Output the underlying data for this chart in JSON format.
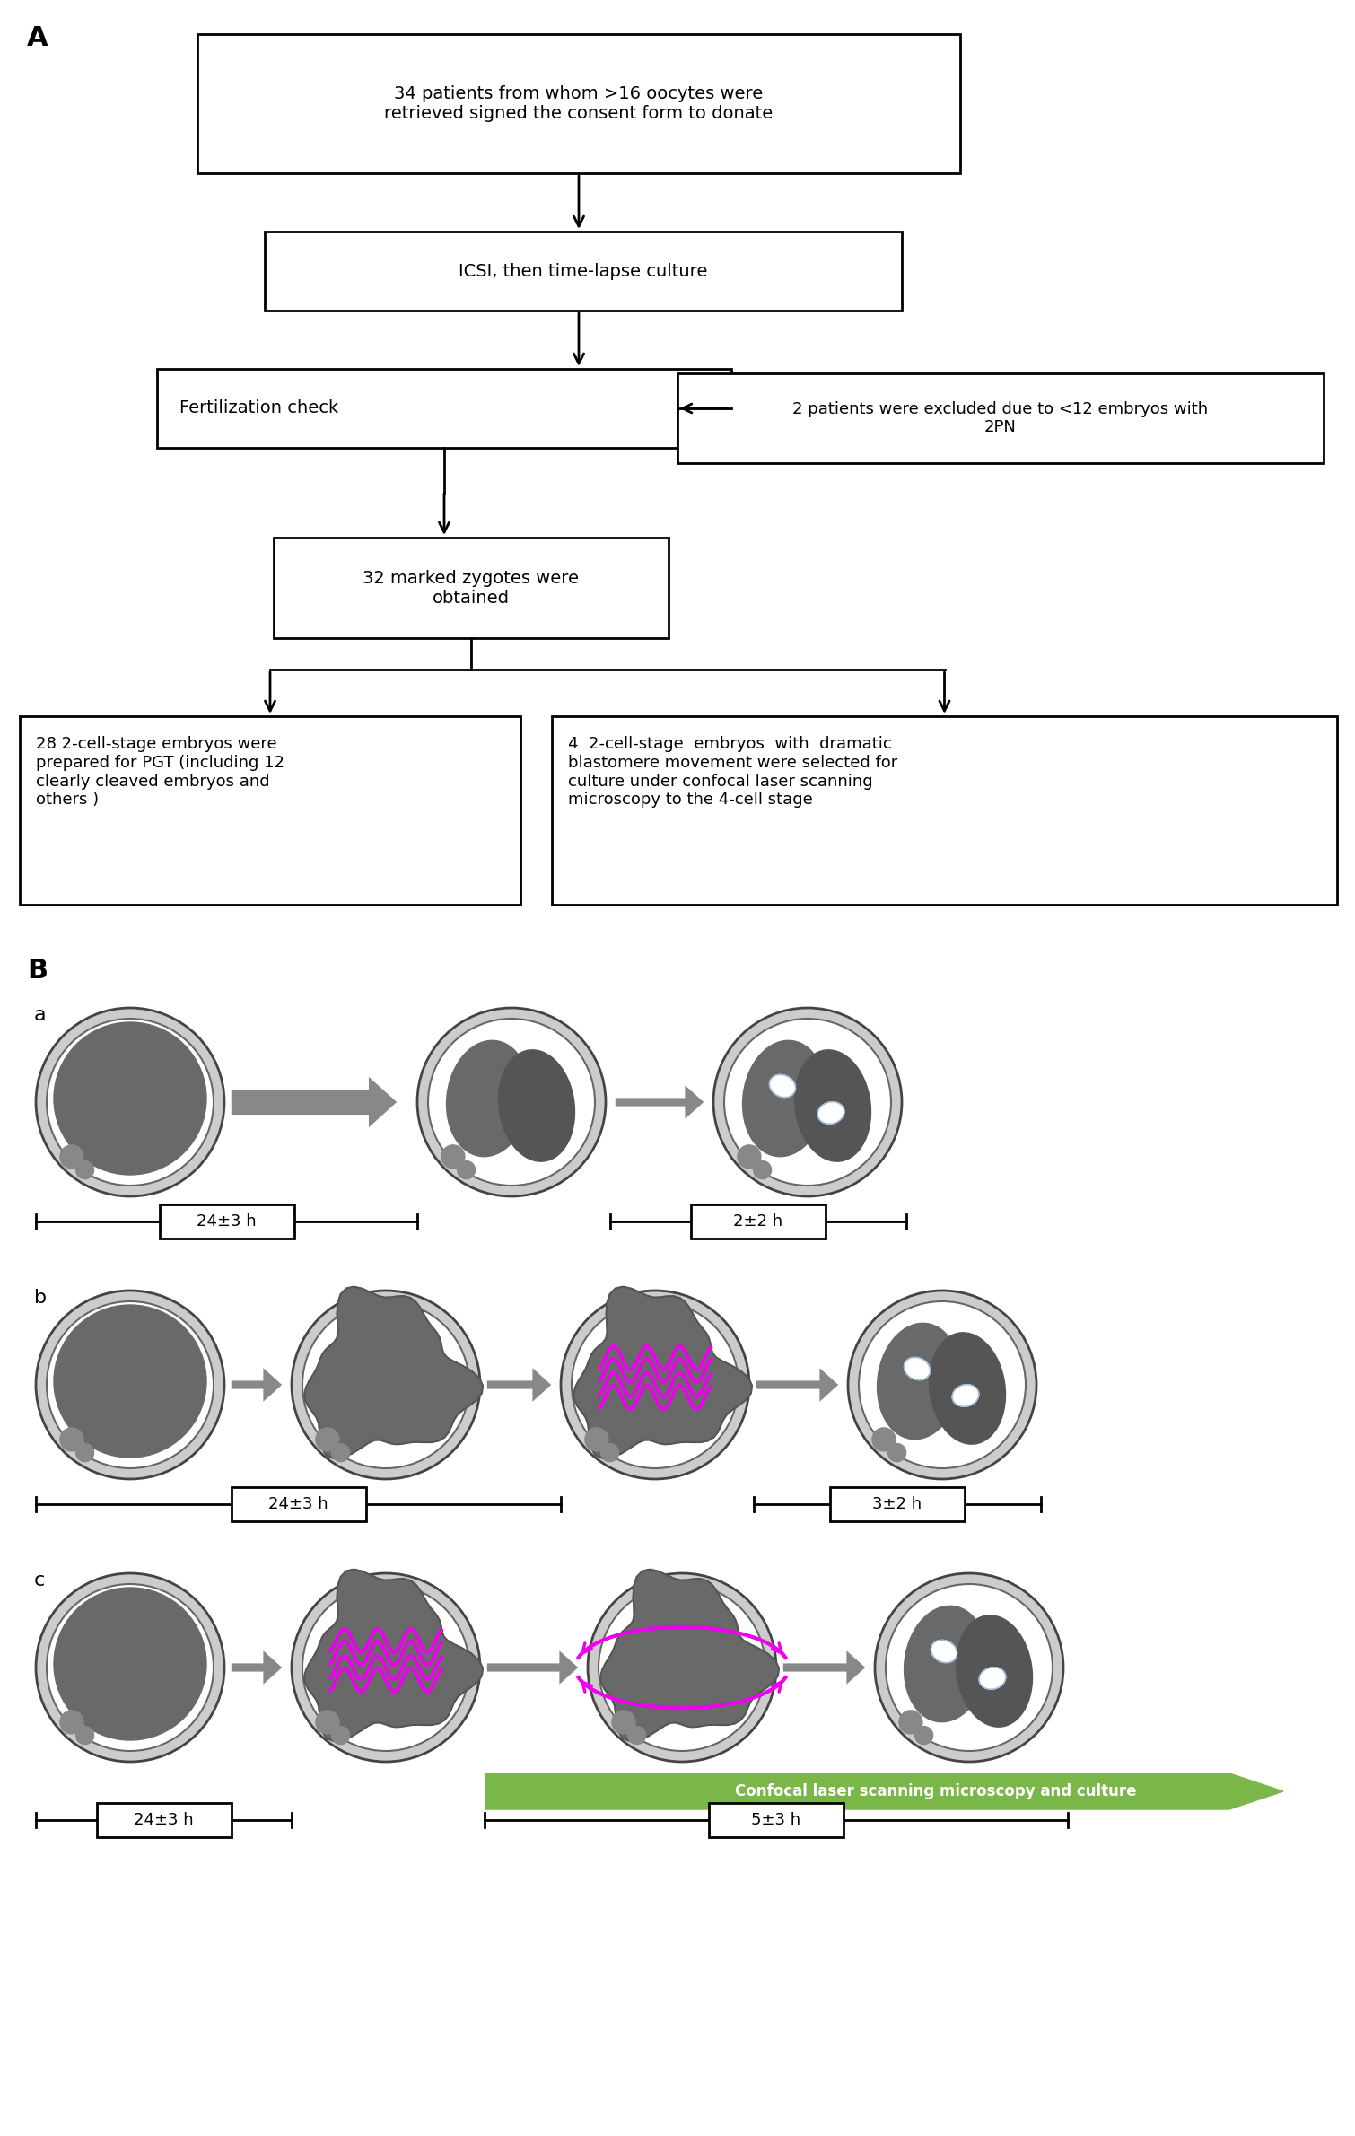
{
  "panel_A_label": "A",
  "panel_B_label": "B",
  "box1_text": "34 patients from whom >16 oocytes were\nretrieved signed the consent form to donate",
  "box2_text": "ICSI, then time-lapse culture",
  "box3_text": "Fertilization check",
  "box4_text": "2 patients were excluded due to <12 embryos with\n2PN",
  "box5_text": "32 marked zygotes were\nobtained",
  "box6_text": "28 2-cell-stage embryos were\nprepared for PGT (including 12\nclearly cleaved embryos and\nothers )",
  "box7_text": "4  2-cell-stage  embryos  with  dramatic\nblastomere movement were selected for\nculture under confocal laser scanning\nmicroscopy to the 4-cell stage",
  "row_a_times": [
    "24±3 h",
    "2±2 h"
  ],
  "row_b_times": [
    "24±3 h",
    "3±2 h"
  ],
  "row_c_times": [
    "24±3 h",
    "5±3 h"
  ],
  "confocal_text": "Confocal laser scanning microscopy and culture",
  "label_a": "a",
  "label_b": "b",
  "label_c": "c",
  "bg_color": "#ffffff",
  "box_edge_color": "#000000",
  "arrow_color": "#888888",
  "magenta_color": "#ee00ee",
  "green_arrow_color": "#7ab648",
  "orange_tip_color": "#c0540a",
  "cell_dark": "#696969",
  "cell_mid": "#555555",
  "zona_color": "#cccccc",
  "polar_color": "#888888"
}
